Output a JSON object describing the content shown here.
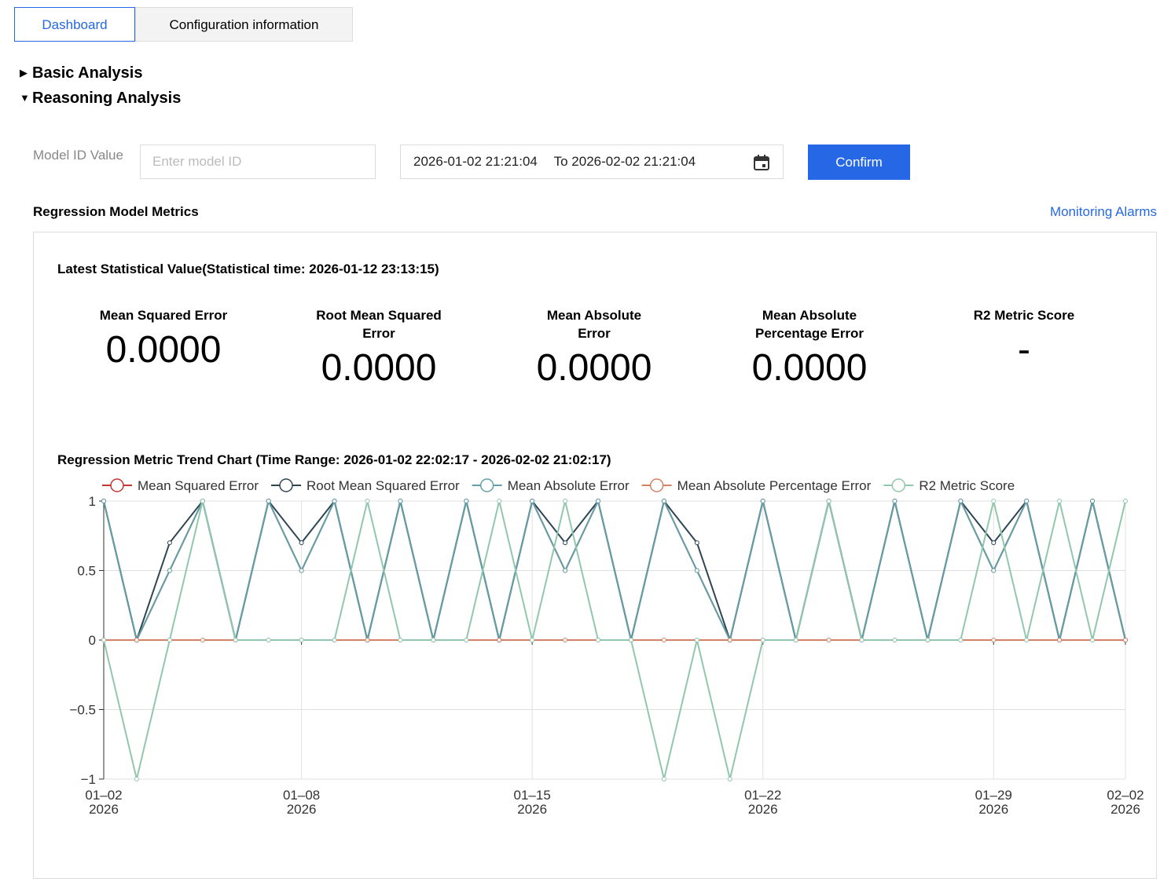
{
  "tabs": [
    "Dashboard",
    "Configuration information"
  ],
  "sections": [
    "Basic Analysis",
    "Reasoning Analysis"
  ],
  "filters": {
    "model_id_label": "Model ID Value",
    "model_id_placeholder": "Enter model ID",
    "start": "2026-01-02 21:21:04",
    "to_label": "To",
    "end": "2026-02-02 21:21:04",
    "confirm": "Confirm"
  },
  "panel": {
    "title": "Regression Model Metrics",
    "link": "Monitoring Alarms"
  },
  "latest": {
    "title": "Latest Statistical Value(Statistical time: 2026-01-12 23:13:15)",
    "metrics": [
      {
        "label": "Mean Squared Error",
        "value": "0.0000"
      },
      {
        "label": "Root Mean Squared Error",
        "value": "0.0000"
      },
      {
        "label": "Mean Absolute Error",
        "value": "0.0000"
      },
      {
        "label": "Mean Absolute Percentage Error",
        "value": "0.0000"
      },
      {
        "label": "R2 Metric Score",
        "value": "-"
      }
    ]
  },
  "chart_data": {
    "type": "line",
    "title": "Regression Metric Trend Chart (Time Range: 2026-01-02 22:02:17 - 2026-02-02 21:02:17)",
    "x": [
      "2026-01-02",
      "2026-01-03",
      "2026-01-04",
      "2026-01-05",
      "2026-01-06",
      "2026-01-07",
      "2026-01-08",
      "2026-01-09",
      "2026-01-10",
      "2026-01-11",
      "2026-01-12",
      "2026-01-13",
      "2026-01-14",
      "2026-01-15",
      "2026-01-16",
      "2026-01-17",
      "2026-01-18",
      "2026-01-19",
      "2026-01-20",
      "2026-01-21",
      "2026-01-22",
      "2026-01-23",
      "2026-01-24",
      "2026-01-25",
      "2026-01-26",
      "2026-01-27",
      "2026-01-28",
      "2026-01-29",
      "2026-01-30",
      "2026-01-31",
      "2026-02-01",
      "2026-02-02"
    ],
    "series": [
      {
        "name": "Mean Squared Error",
        "color": "#c23531",
        "values": [
          1,
          0,
          0.5,
          1,
          0,
          1,
          0.5,
          1,
          0,
          1,
          0,
          1,
          0,
          1,
          0.5,
          1,
          0,
          1,
          0.5,
          0,
          1,
          0,
          1,
          0,
          1,
          0,
          1,
          0.5,
          1,
          0,
          1,
          0
        ]
      },
      {
        "name": "Root Mean Squared Error",
        "color": "#2f4554",
        "values": [
          1,
          0,
          0.7,
          1,
          0,
          1,
          0.7,
          1,
          0,
          1,
          0,
          1,
          0,
          1,
          0.7,
          1,
          0,
          1,
          0.7,
          0,
          1,
          0,
          1,
          0,
          1,
          0,
          1,
          0.7,
          1,
          0,
          1,
          0
        ]
      },
      {
        "name": "Mean Absolute Error",
        "color": "#61a0a8",
        "values": [
          1,
          0,
          0.5,
          1,
          0,
          1,
          0.5,
          1,
          0,
          1,
          0,
          1,
          0,
          1,
          0.5,
          1,
          0,
          1,
          0.5,
          0,
          1,
          0,
          1,
          0,
          1,
          0,
          1,
          0.5,
          1,
          0,
          1,
          0
        ]
      },
      {
        "name": "Mean Absolute Percentage Error",
        "color": "#d48265",
        "values": [
          0,
          0,
          0,
          0,
          0,
          0,
          0,
          0,
          0,
          0,
          0,
          0,
          0,
          0,
          0,
          0,
          0,
          0,
          0,
          0,
          0,
          0,
          0,
          0,
          0,
          0,
          0,
          0,
          0,
          0,
          0,
          0
        ]
      },
      {
        "name": "R2 Metric Score",
        "color": "#91c7ae",
        "values": [
          0,
          -1,
          0,
          1,
          0,
          0,
          0,
          0,
          1,
          0,
          0,
          0,
          1,
          0,
          1,
          0,
          0,
          -1,
          0,
          -1,
          0,
          0,
          1,
          0,
          0,
          0,
          0,
          1,
          0,
          1,
          0,
          1
        ]
      }
    ],
    "xlim": [
      "2026-01-02",
      "2026-02-02"
    ],
    "xticks": [
      {
        "value": "2026-01-02",
        "label": [
          "01–02",
          "2026"
        ]
      },
      {
        "value": "2026-01-08",
        "label": [
          "01–08",
          "2026"
        ]
      },
      {
        "value": "2026-01-15",
        "label": [
          "01–15",
          "2026"
        ]
      },
      {
        "value": "2026-01-22",
        "label": [
          "01–22",
          "2026"
        ]
      },
      {
        "value": "2026-01-29",
        "label": [
          "01–29",
          "2026"
        ]
      },
      {
        "value": "2026-02-02",
        "label": [
          "02–02",
          "2026"
        ]
      }
    ],
    "ylim": [
      -1,
      1
    ],
    "yticks": [
      {
        "value": -1,
        "label": "−1"
      },
      {
        "value": -0.5,
        "label": "−0.5"
      },
      0,
      0.5,
      1
    ],
    "grid": true,
    "legend": "top"
  }
}
